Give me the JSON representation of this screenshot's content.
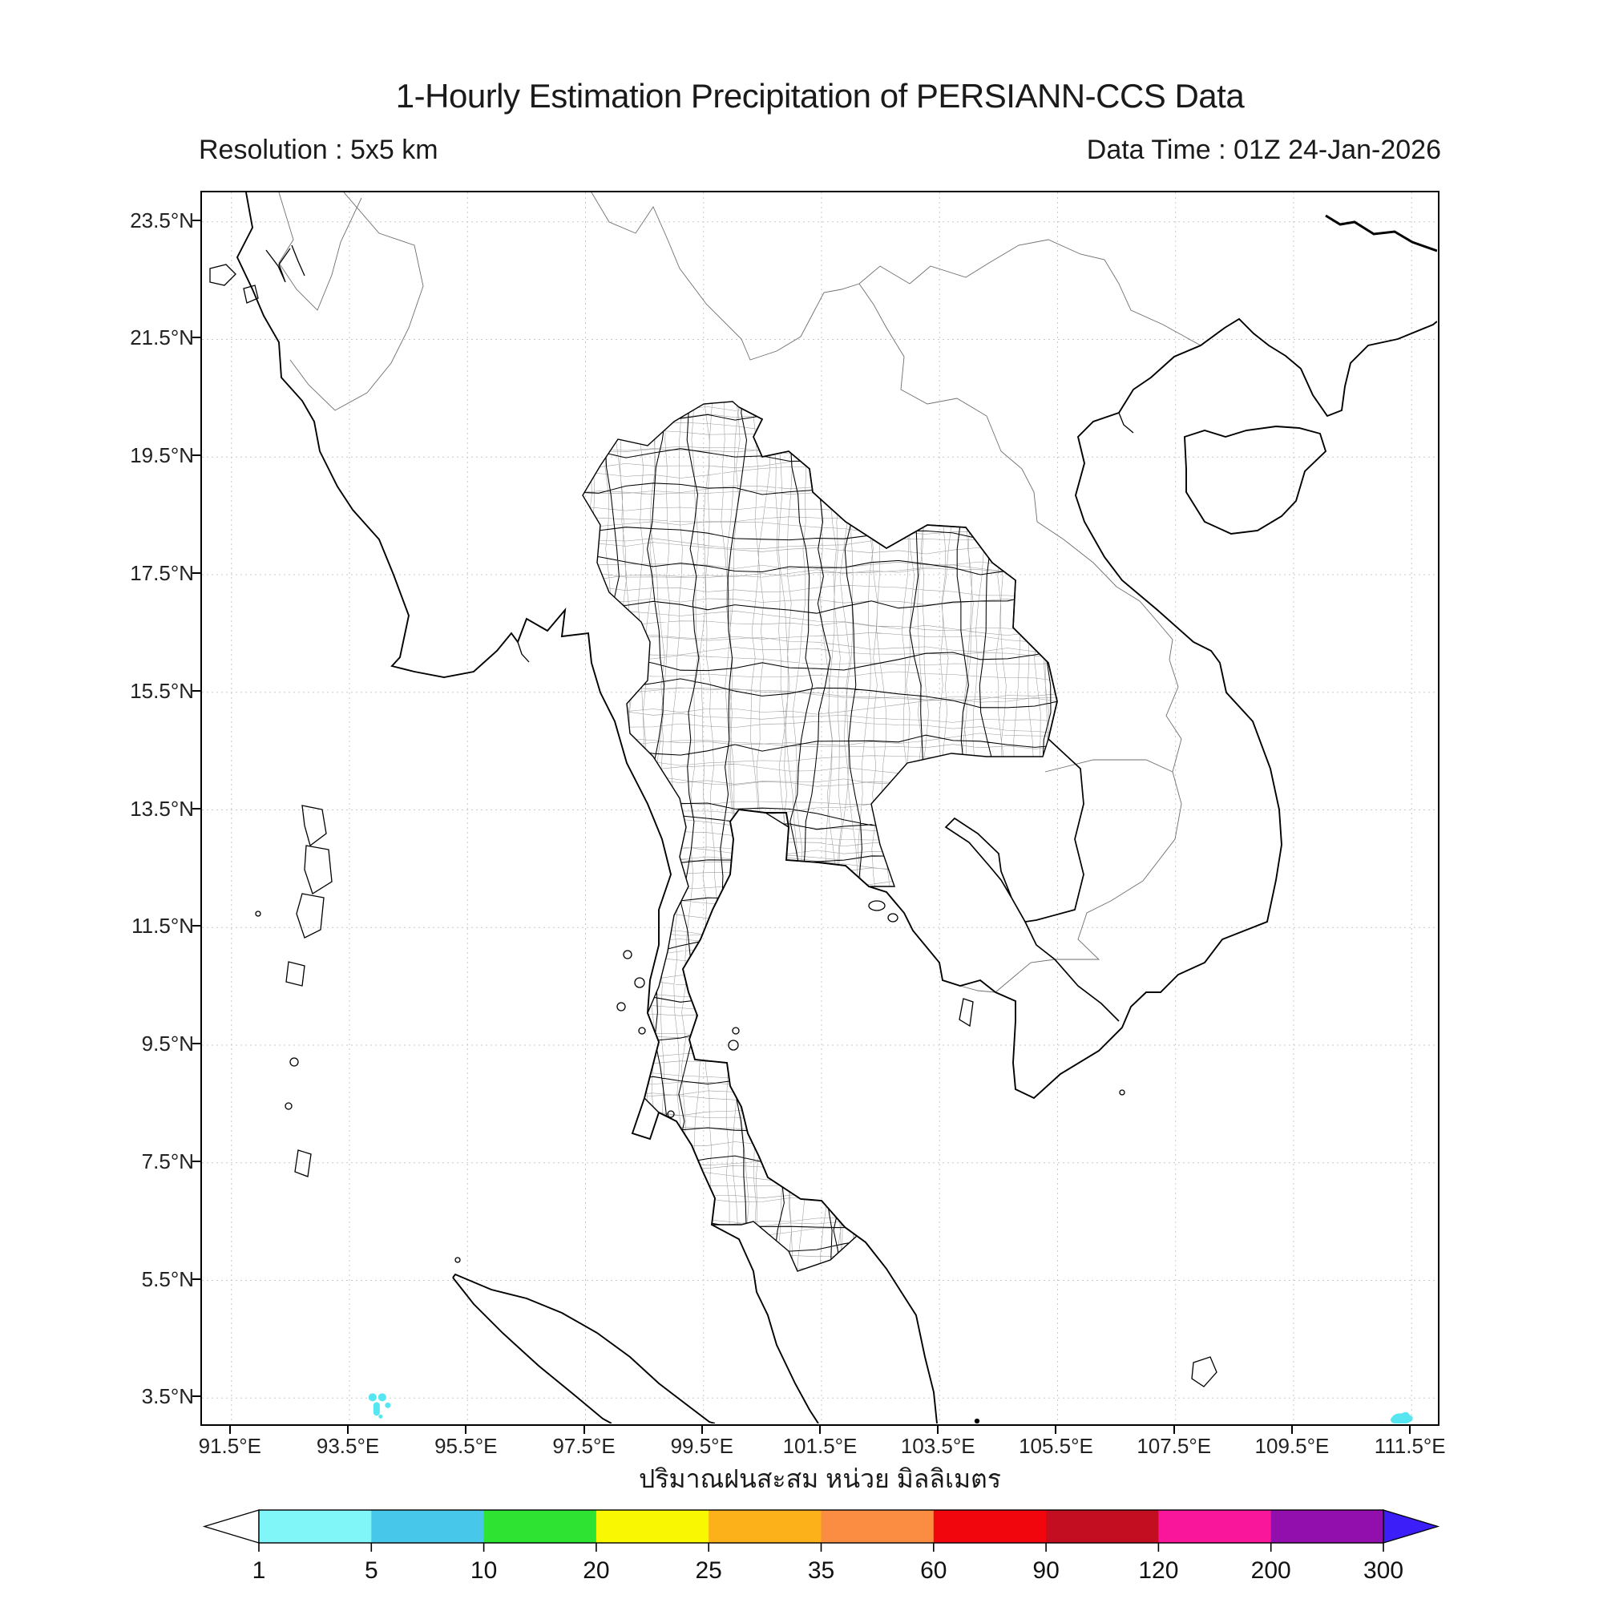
{
  "title": "1-Hourly Estimation Precipitation of PERSIANN-CCS Data",
  "subtitle_left": "Resolution : 5x5 km",
  "subtitle_right": "Data Time : 01Z 24-Jan-2026",
  "axes": {
    "lat_tick_labels": [
      "23.5°N",
      "21.5°N",
      "19.5°N",
      "17.5°N",
      "15.5°N",
      "13.5°N",
      "11.5°N",
      "9.5°N",
      "7.5°N",
      "5.5°N",
      "3.5°N"
    ],
    "lon_tick_labels": [
      "91.5°E",
      "93.5°E",
      "95.5°E",
      "97.5°E",
      "99.5°E",
      "101.5°E",
      "103.5°E",
      "105.5°E",
      "107.5°E",
      "109.5°E",
      "111.5°E"
    ],
    "lat_range_deg": [
      3.0,
      24.0
    ],
    "lon_range_deg": [
      91.0,
      112.0
    ]
  },
  "colorbar": {
    "caption": "ปริมาณฝนสะสม หน่วย มิลลิเมตร",
    "tick_labels": [
      "1",
      "5",
      "10",
      "20",
      "25",
      "35",
      "60",
      "90",
      "120",
      "200",
      "300"
    ],
    "tick_values_mm": [
      1,
      5,
      10,
      20,
      25,
      35,
      60,
      90,
      120,
      200,
      300
    ],
    "segment_colors": [
      "#80F6F9",
      "#47C8EA",
      "#2EE331",
      "#F9F802",
      "#FCB019",
      "#FB8D43",
      "#F2060D",
      "#C30D20",
      "#FA169A",
      "#930FAD"
    ],
    "under_range_arrow_color": "#FFFFFF",
    "over_range_arrow_color": "#3B1EF8",
    "outline_color": "#000000"
  },
  "chart_data": {
    "type": "heatmap",
    "title": "1-Hourly Estimation Precipitation of PERSIANN-CCS Data",
    "resolution": "5x5 km",
    "data_time": "01Z 24-Jan-2026",
    "units_label_thai": "ปริมาณฝนสะสม หน่วย มิลลิเมตร",
    "units": "mm",
    "xlabel_ticks_deg_east": [
      91.5,
      93.5,
      95.5,
      97.5,
      99.5,
      101.5,
      103.5,
      105.5,
      107.5,
      109.5,
      111.5
    ],
    "ylabel_ticks_deg_north": [
      23.5,
      21.5,
      19.5,
      17.5,
      15.5,
      13.5,
      11.5,
      9.5,
      7.5,
      5.5,
      3.5
    ],
    "grid": "dotted light-gray every 2 degrees",
    "legend_position": "bottom horizontal arrow colorbar",
    "scale_breaks_mm": [
      1,
      5,
      10,
      20,
      25,
      35,
      60,
      90,
      120,
      200,
      300
    ],
    "precip_spots": [
      {
        "lon": 94.0,
        "lat": 3.35,
        "value_mm": "1-5",
        "form": "small dot cluster"
      },
      {
        "lon": 111.33,
        "lat": 3.13,
        "value_mm": "1-5",
        "form": "small blob"
      },
      {
        "lon": 111.0,
        "lat": 3.05,
        "value_mm": "1-5",
        "form": "tiny streak"
      }
    ],
    "spot_color": "#55E6F2"
  }
}
